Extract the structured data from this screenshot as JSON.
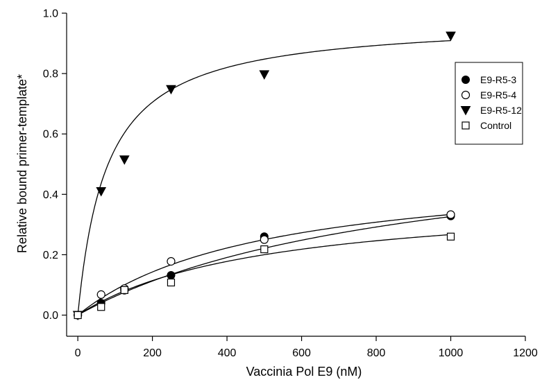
{
  "chart_data": {
    "type": "scatter",
    "title": "",
    "xlabel": "Vaccinia Pol E9 (nM)",
    "ylabel": "Relative bound primer-template*",
    "xlim": [
      -30,
      1200
    ],
    "ylim": [
      -0.07,
      1.0
    ],
    "xticks": [
      0,
      200,
      400,
      600,
      800,
      1000,
      1200
    ],
    "yticks": [
      0.0,
      0.2,
      0.4,
      0.6,
      0.8,
      1.0
    ],
    "x_tick_labels": [
      "0",
      "200",
      "400",
      "600",
      "800",
      "1000",
      "1200"
    ],
    "y_tick_labels": [
      "0.0",
      "0.2",
      "0.4",
      "0.6",
      "0.8",
      "1.0"
    ],
    "grid": false,
    "legend_position": "top-right",
    "series": [
      {
        "name": "E9-R5-3",
        "marker": "filled-circle",
        "x": [
          0,
          62.5,
          125,
          250,
          500,
          1000
        ],
        "y": [
          0.0,
          0.04,
          0.082,
          0.132,
          0.26,
          0.328
        ],
        "fit": {
          "bmax": 0.62,
          "kd": 900
        }
      },
      {
        "name": "E9-R5-4",
        "marker": "open-circle",
        "x": [
          0,
          62.5,
          125,
          250,
          500,
          1000
        ],
        "y": [
          0.0,
          0.068,
          0.088,
          0.178,
          0.25,
          0.333
        ],
        "fit": {
          "bmax": 0.5,
          "kd": 500
        }
      },
      {
        "name": "E9-R5-12",
        "marker": "filled-triangle-down",
        "x": [
          0,
          62.5,
          125,
          250,
          500,
          1000
        ],
        "y": [
          0.0,
          0.41,
          0.515,
          0.748,
          0.797,
          0.925
        ],
        "fit": {
          "bmax": 0.98,
          "kd": 78
        }
      },
      {
        "name": "Control",
        "marker": "open-square",
        "x": [
          0,
          62.5,
          125,
          250,
          500,
          1000
        ],
        "y": [
          0.0,
          0.027,
          0.083,
          0.108,
          0.218,
          0.26
        ],
        "fit": {
          "bmax": 0.4,
          "kd": 500
        }
      }
    ]
  }
}
